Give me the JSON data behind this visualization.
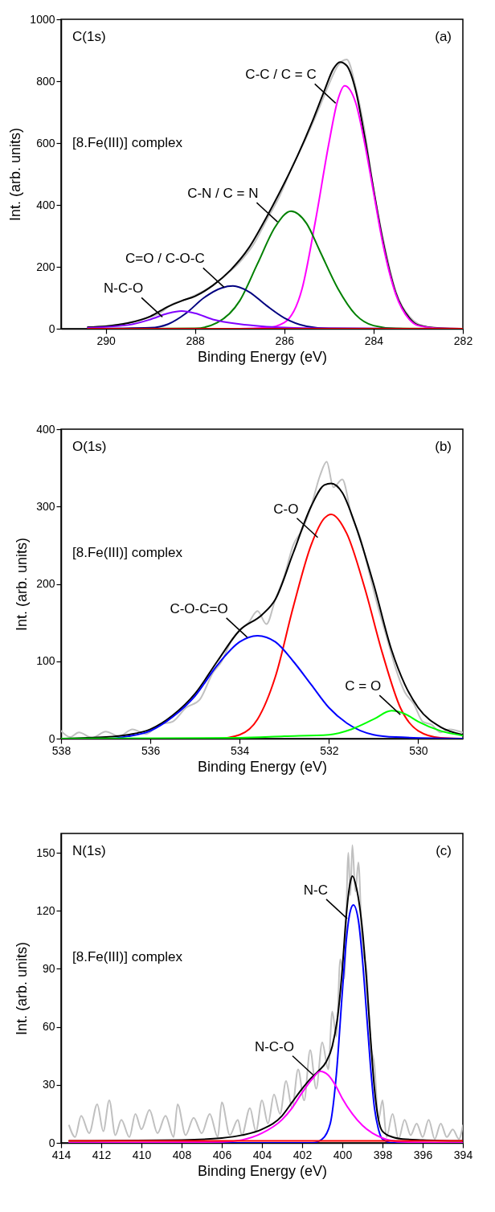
{
  "chart_data": [
    {
      "type": "line",
      "xlabel": "Binding Energy (eV)",
      "ylabel": "Int. (arb. units)",
      "xlim": [
        291,
        282
      ],
      "ylim": [
        0,
        1000
      ],
      "xticks": [
        290,
        288,
        286,
        284,
        282
      ],
      "yticks": [
        0,
        200,
        400,
        600,
        800,
        1000
      ],
      "annotations": [
        "C(1s)",
        "(a)",
        "[8.Fe(III)] complex",
        {
          "text": "C-C / C = C",
          "x": 284.85,
          "y": 729
        },
        {
          "text": "C-N / C = N",
          "x": 286.15,
          "y": 345
        },
        {
          "text": "C=O / C-O-C",
          "x": 287.35,
          "y": 134
        },
        {
          "text": "N-C-O",
          "x": 288.73,
          "y": 38
        }
      ],
      "series": [
        {
          "color": "#c0c0c0",
          "x": [
            290.4,
            289.8,
            289.2,
            288.8,
            288.5,
            288.2,
            287.9,
            287.6,
            287.3,
            287,
            286.7,
            286.4,
            286.1,
            285.8,
            285.5,
            285.2,
            285,
            284.8,
            284.6,
            284.4,
            284.2,
            284,
            283.8,
            283.5,
            283.2,
            283,
            282.8
          ],
          "values": [
            5,
            12,
            30,
            50,
            80,
            95,
            115,
            140,
            175,
            215,
            270,
            350,
            430,
            530,
            620,
            720,
            790,
            850,
            870,
            780,
            640,
            450,
            300,
            120,
            40,
            15,
            5
          ]
        },
        {
          "color": "#000000",
          "x": [
            290.4,
            290,
            289.5,
            289,
            288.6,
            288.3,
            288,
            287.6,
            287.2,
            286.8,
            286.4,
            286,
            285.7,
            285.4,
            285.1,
            284.9,
            284.75,
            284.6,
            284.4,
            284.2,
            284,
            283.8,
            283.5,
            283.2,
            283,
            282.5,
            282
          ],
          "values": [
            5,
            8,
            18,
            40,
            72,
            90,
            105,
            140,
            190,
            260,
            360,
            470,
            560,
            660,
            770,
            840,
            862,
            850,
            770,
            620,
            450,
            290,
            115,
            35,
            12,
            2,
            0
          ]
        },
        {
          "color": "#ff00ff",
          "x": [
            290.4,
            287,
            286.4,
            286,
            285.6,
            285.3,
            285,
            284.8,
            284.65,
            284.4,
            284.2,
            284,
            283.8,
            283.5,
            283.2,
            283,
            282.5,
            282
          ],
          "values": [
            0,
            0,
            3,
            20,
            130,
            350,
            600,
            740,
            785,
            730,
            600,
            440,
            280,
            110,
            30,
            10,
            1,
            0
          ]
        },
        {
          "color": "#008000",
          "x": [
            290.4,
            288,
            287.5,
            287,
            286.6,
            286.2,
            285.85,
            285.5,
            285.2,
            284.8,
            284.4,
            284,
            283.5,
            282
          ],
          "values": [
            0,
            1,
            20,
            90,
            210,
            330,
            380,
            340,
            250,
            130,
            45,
            10,
            1,
            0
          ]
        },
        {
          "color": "#000080",
          "x": [
            290.4,
            289,
            288.6,
            288.2,
            287.8,
            287.4,
            287.15,
            286.8,
            286.4,
            286,
            285.5,
            285,
            282
          ],
          "values": [
            0,
            3,
            15,
            50,
            100,
            132,
            138,
            120,
            75,
            35,
            8,
            1,
            0
          ]
        },
        {
          "color": "#8000ff",
          "x": [
            290.4,
            289.5,
            289,
            288.6,
            288.3,
            288,
            287.6,
            287,
            286.5,
            286,
            285,
            282
          ],
          "values": [
            3,
            12,
            30,
            50,
            57,
            50,
            30,
            15,
            8,
            4,
            1,
            0
          ]
        },
        {
          "color": "#ff0000",
          "x": [
            290.4,
            282
          ],
          "values": [
            0,
            0
          ]
        }
      ]
    },
    {
      "type": "line",
      "xlabel": "Binding Energy (eV)",
      "ylabel": "Int. (arb. units)",
      "xlim": [
        538,
        529
      ],
      "ylim": [
        0,
        400
      ],
      "xticks": [
        538,
        536,
        534,
        532,
        530
      ],
      "yticks": [
        0,
        100,
        200,
        300,
        400
      ],
      "annotations": [
        "O(1s)",
        "(b)",
        "[8.Fe(III)] complex",
        {
          "text": "C-O",
          "x": 532.25,
          "y": 260
        },
        {
          "text": "C-O-C=O",
          "x": 533.83,
          "y": 131
        },
        {
          "text": "C = O",
          "x": 530.4,
          "y": 31
        }
      ],
      "series": [
        {
          "color": "#c0c0c0",
          "x": [
            538,
            537.8,
            537.6,
            537.3,
            537,
            536.7,
            536.4,
            536.1,
            535.8,
            535.5,
            535.2,
            534.9,
            534.6,
            534.4,
            534.2,
            534,
            533.8,
            533.6,
            533.4,
            533.2,
            533,
            532.8,
            532.6,
            532.4,
            532.2,
            532.05,
            531.9,
            531.7,
            531.5,
            531.3,
            531.1,
            530.9,
            530.7,
            530.5,
            530.3,
            530.1,
            529.9,
            529.7,
            529.5,
            529.3,
            529
          ],
          "values": [
            10,
            2,
            8,
            1,
            9,
            3,
            12,
            6,
            18,
            22,
            40,
            50,
            85,
            100,
            125,
            140,
            150,
            165,
            148,
            180,
            210,
            250,
            270,
            300,
            340,
            358,
            325,
            335,
            290,
            260,
            215,
            170,
            130,
            90,
            60,
            45,
            22,
            18,
            8,
            12,
            8
          ]
        },
        {
          "color": "#000000",
          "x": [
            538,
            537,
            536.5,
            536,
            535.5,
            535,
            534.5,
            534,
            533.5,
            533.2,
            532.8,
            532.4,
            532.1,
            531.95,
            531.7,
            531.4,
            531,
            530.6,
            530.3,
            530,
            529.5,
            529
          ],
          "values": [
            0,
            2,
            5,
            12,
            30,
            58,
            100,
            140,
            160,
            180,
            240,
            300,
            328,
            330,
            318,
            275,
            200,
            115,
            70,
            40,
            15,
            5
          ]
        },
        {
          "color": "#ff0000",
          "x": [
            538,
            534.5,
            534,
            533.6,
            533.2,
            532.8,
            532.4,
            532.1,
            531.95,
            531.6,
            531.2,
            530.8,
            530.4,
            530,
            529.5,
            529
          ],
          "values": [
            0,
            0,
            5,
            25,
            80,
            170,
            250,
            285,
            290,
            265,
            195,
            110,
            40,
            10,
            1,
            0
          ]
        },
        {
          "color": "#0000ff",
          "x": [
            538,
            537,
            536.5,
            536,
            535.5,
            535,
            534.5,
            534,
            533.6,
            533.2,
            532.8,
            532.4,
            532,
            531.6,
            531,
            530.5,
            529
          ],
          "values": [
            0,
            0,
            3,
            10,
            28,
            55,
            95,
            125,
            133,
            125,
            100,
            70,
            40,
            20,
            5,
            2,
            0
          ]
        },
        {
          "color": "#00ff00",
          "x": [
            538,
            534,
            533,
            532,
            531.5,
            531,
            530.6,
            530.3,
            530,
            529.5,
            529
          ],
          "values": [
            0,
            1,
            3,
            5,
            12,
            25,
            36,
            32,
            22,
            10,
            4
          ]
        }
      ]
    },
    {
      "type": "line",
      "xlabel": "Binding Energy (eV)",
      "ylabel": "Int. (arb. units)",
      "xlim": [
        414,
        394
      ],
      "ylim": [
        0,
        160
      ],
      "xticks": [
        414,
        412,
        410,
        408,
        406,
        404,
        402,
        400,
        398,
        396,
        394
      ],
      "yticks": [
        0,
        30,
        60,
        90,
        120,
        150
      ],
      "annotations": [
        "N(1s)",
        "(c)",
        "[8.Fe(III)] complex",
        {
          "text": "N-C",
          "x": 399.76,
          "y": 116
        },
        {
          "text": "N-C-O",
          "x": 401.44,
          "y": 35
        }
      ],
      "series": [
        {
          "color": "#c0c0c0",
          "x": [
            413.6,
            413.3,
            413,
            412.6,
            412.2,
            411.9,
            411.6,
            411.3,
            411,
            410.6,
            410.3,
            410,
            409.6,
            409.2,
            408.8,
            408.4,
            408.2,
            407.8,
            407.4,
            407,
            406.6,
            406.2,
            406,
            405.6,
            405.2,
            405,
            404.6,
            404.3,
            404,
            403.7,
            403.4,
            403.1,
            402.8,
            402.5,
            402.2,
            401.9,
            401.6,
            401.3,
            401,
            400.7,
            400.5,
            400.3,
            400.1,
            399.9,
            399.7,
            399.6,
            399.5,
            399.35,
            399.2,
            399,
            398.8,
            398.6,
            398.4,
            398.2,
            398,
            397.8,
            397.5,
            397.2,
            396.9,
            396.6,
            396.3,
            396,
            395.7,
            395.4,
            395.1,
            394.8,
            394.5,
            394.2,
            394
          ],
          "values": [
            9,
            3,
            14,
            5,
            20,
            6,
            22,
            4,
            12,
            3,
            15,
            7,
            17,
            5,
            14,
            3,
            20,
            4,
            13,
            5,
            15,
            3,
            21,
            4,
            12,
            4,
            18,
            6,
            22,
            10,
            25,
            15,
            32,
            18,
            38,
            22,
            48,
            28,
            52,
            38,
            68,
            55,
            95,
            85,
            150,
            128,
            154,
            130,
            145,
            100,
            90,
            52,
            40,
            12,
            22,
            3,
            15,
            2,
            12,
            4,
            10,
            3,
            12,
            2,
            10,
            3,
            7,
            2,
            9
          ]
        },
        {
          "color": "#000000",
          "x": [
            413.6,
            408,
            406,
            405,
            404,
            403,
            402.5,
            402,
            401.6,
            401.2,
            400.8,
            400.5,
            400.2,
            400,
            399.8,
            399.6,
            399.5,
            399.3,
            399,
            398.8,
            398.6,
            398.4,
            398.2,
            398,
            397.5,
            397,
            396,
            394
          ],
          "values": [
            1,
            1.5,
            2.5,
            4,
            7,
            14,
            21,
            28,
            33,
            37,
            42,
            50,
            68,
            90,
            118,
            135,
            138,
            132,
            110,
            85,
            55,
            28,
            12,
            6,
            3,
            2,
            1.5,
            1
          ]
        },
        {
          "color": "#0000ff",
          "x": [
            413.6,
            401.5,
            401,
            400.6,
            400.3,
            400,
            399.8,
            399.6,
            399.45,
            399.2,
            399,
            398.8,
            398.6,
            398.4,
            398.2,
            398,
            397.5,
            394
          ],
          "values": [
            0,
            0,
            2,
            10,
            35,
            78,
            105,
            120,
            123,
            115,
            95,
            68,
            40,
            18,
            7,
            2,
            0,
            0
          ]
        },
        {
          "color": "#ff00ff",
          "x": [
            413.6,
            406,
            405,
            404,
            403,
            402.5,
            402,
            401.5,
            401.1,
            400.7,
            400.3,
            400,
            399.5,
            399,
            398.5,
            398,
            397,
            394
          ],
          "values": [
            0,
            0.5,
            1.5,
            5,
            12,
            18,
            26,
            33,
            37,
            35,
            29,
            23,
            15,
            9,
            5,
            2.5,
            0.5,
            0
          ]
        },
        {
          "color": "#ff0000",
          "x": [
            413.6,
            394
          ],
          "values": [
            1,
            1
          ]
        }
      ]
    }
  ]
}
